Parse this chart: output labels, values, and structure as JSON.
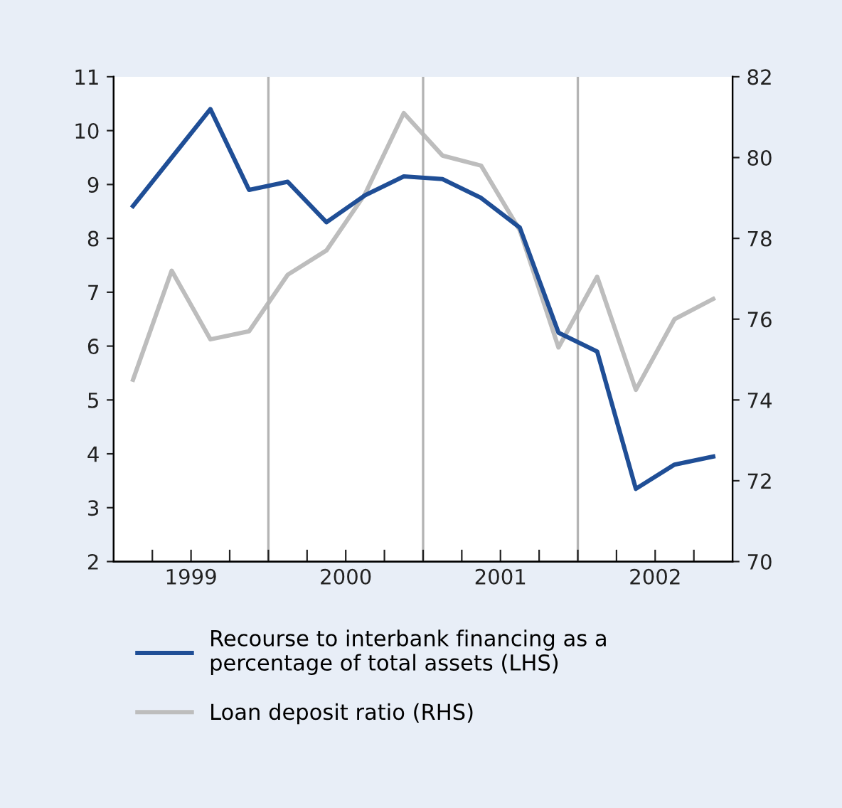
{
  "chart_data": {
    "type": "line",
    "x": [
      1999.125,
      1999.375,
      1999.625,
      1999.875,
      2000.125,
      2000.375,
      2000.625,
      2000.875,
      2001.125,
      2001.375,
      2001.625,
      2001.875,
      2002.125,
      2002.375,
      2002.625,
      2002.875
    ],
    "series": [
      {
        "name": "Recourse to interbank financing as a percentage of total assets (LHS)",
        "color": "#1f4e96",
        "values": [
          8.6,
          9.5,
          10.4,
          8.9,
          9.05,
          8.3,
          8.8,
          9.15,
          9.1,
          8.75,
          8.2,
          6.25,
          5.9,
          3.35,
          3.8,
          3.95
        ]
      },
      {
        "name": "Loan deposit ratio (RHS)",
        "color": "#bdbdbd",
        "axis": "y2",
        "values": [
          74.5,
          77.2,
          75.5,
          75.7,
          77.1,
          77.7,
          79.1,
          81.1,
          80.05,
          79.8,
          78.2,
          75.3,
          77.05,
          74.25,
          76.0,
          76.5
        ]
      }
    ],
    "xlim": [
      1999,
      2003
    ],
    "xticks": [
      {
        "value": 1999.25,
        "label": null
      },
      {
        "value": 1999.5,
        "label": "1999"
      },
      {
        "value": 1999.75,
        "label": null
      },
      {
        "value": 2000,
        "label": null
      },
      {
        "value": 2000.25,
        "label": null
      },
      {
        "value": 2000.5,
        "label": "2000"
      },
      {
        "value": 2000.75,
        "label": null
      },
      {
        "value": 2001,
        "label": null
      },
      {
        "value": 2001.25,
        "label": null
      },
      {
        "value": 2001.5,
        "label": "2001"
      },
      {
        "value": 2001.75,
        "label": null
      },
      {
        "value": 2002,
        "label": null
      },
      {
        "value": 2002.25,
        "label": null
      },
      {
        "value": 2002.5,
        "label": "2002"
      },
      {
        "value": 2002.75,
        "label": null
      }
    ],
    "ylim": [
      2,
      11
    ],
    "yticks": [
      2,
      3,
      4,
      5,
      6,
      7,
      8,
      9,
      10,
      11
    ],
    "y2lim": [
      70,
      82
    ],
    "y2ticks": [
      70,
      72,
      74,
      76,
      78,
      80,
      82
    ],
    "ref_lines": [
      {
        "axis": "x",
        "value": 2000,
        "color": "#b4b4b4"
      },
      {
        "axis": "x",
        "value": 2001,
        "color": "#b4b4b4"
      },
      {
        "axis": "x",
        "value": 2002,
        "color": "#b4b4b4"
      }
    ],
    "grid": false,
    "legend": "bottom"
  }
}
